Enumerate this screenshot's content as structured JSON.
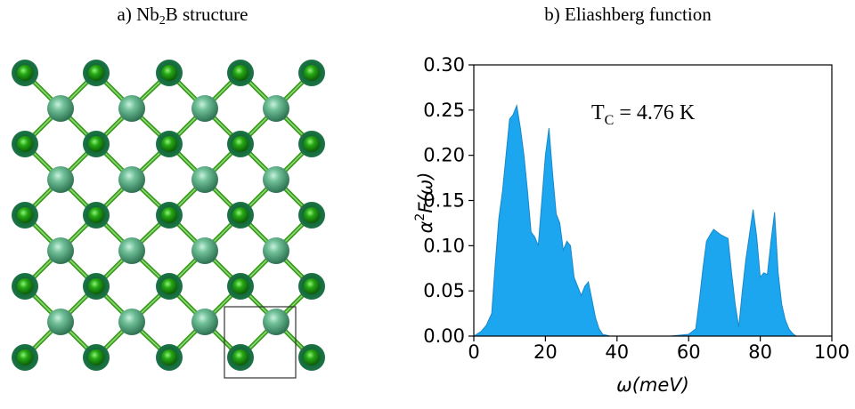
{
  "panel_a": {
    "prefix": "a)",
    "formula_main": "Nb",
    "formula_sub": "2",
    "formula_tail": "B structure",
    "colors": {
      "boron": "#1a8a0a",
      "niobium": "#3f9a72",
      "bond": "#3c9a1e",
      "cell_outline": "#333333"
    }
  },
  "panel_b": {
    "title": "b) Eliashberg function",
    "annotation": {
      "text_main": "T",
      "text_sub": "C",
      "text_tail": " = 4.76 K"
    }
  },
  "chart_data": {
    "type": "area",
    "title": "b) Eliashberg function",
    "xlabel": "ω(meV)",
    "ylabel": "α²F(ω)",
    "xlim": [
      0,
      100
    ],
    "ylim": [
      0,
      0.3
    ],
    "xticks": [
      "0",
      "20",
      "40",
      "60",
      "80",
      "100"
    ],
    "yticks": [
      "0.00",
      "0.05",
      "0.10",
      "0.15",
      "0.20",
      "0.25",
      "0.30"
    ],
    "fill_color": "#1ba6ef",
    "edge_color": "#1a88c9",
    "series": [
      {
        "x": [
          0,
          2,
          3.5,
          5,
          6,
          7,
          8,
          9,
          10,
          11,
          12,
          13,
          14,
          15,
          16,
          17,
          18,
          19,
          20,
          21,
          22,
          23,
          24,
          25,
          26,
          27,
          28,
          29,
          30,
          31,
          32,
          33,
          34,
          35,
          36,
          38,
          40,
          45,
          50,
          55,
          60,
          62,
          63,
          64,
          65,
          66,
          67,
          68,
          69,
          70,
          71,
          72,
          73,
          74,
          75,
          76,
          77,
          78,
          79,
          80,
          81,
          82,
          83,
          84,
          85,
          86,
          87,
          88,
          89,
          90
        ],
        "y": [
          0,
          0.005,
          0.012,
          0.025,
          0.08,
          0.13,
          0.16,
          0.2,
          0.24,
          0.245,
          0.255,
          0.23,
          0.2,
          0.16,
          0.115,
          0.11,
          0.1,
          0.15,
          0.2,
          0.23,
          0.18,
          0.135,
          0.125,
          0.095,
          0.105,
          0.1,
          0.065,
          0.055,
          0.045,
          0.055,
          0.06,
          0.04,
          0.02,
          0.008,
          0.002,
          0,
          0,
          0,
          0,
          0,
          0.002,
          0.008,
          0.04,
          0.075,
          0.105,
          0.112,
          0.118,
          0.115,
          0.112,
          0.11,
          0.108,
          0.07,
          0.035,
          0.01,
          0.05,
          0.085,
          0.112,
          0.14,
          0.11,
          0.065,
          0.07,
          0.068,
          0.105,
          0.137,
          0.07,
          0.035,
          0.018,
          0.008,
          0.003,
          0
        ]
      }
    ]
  }
}
